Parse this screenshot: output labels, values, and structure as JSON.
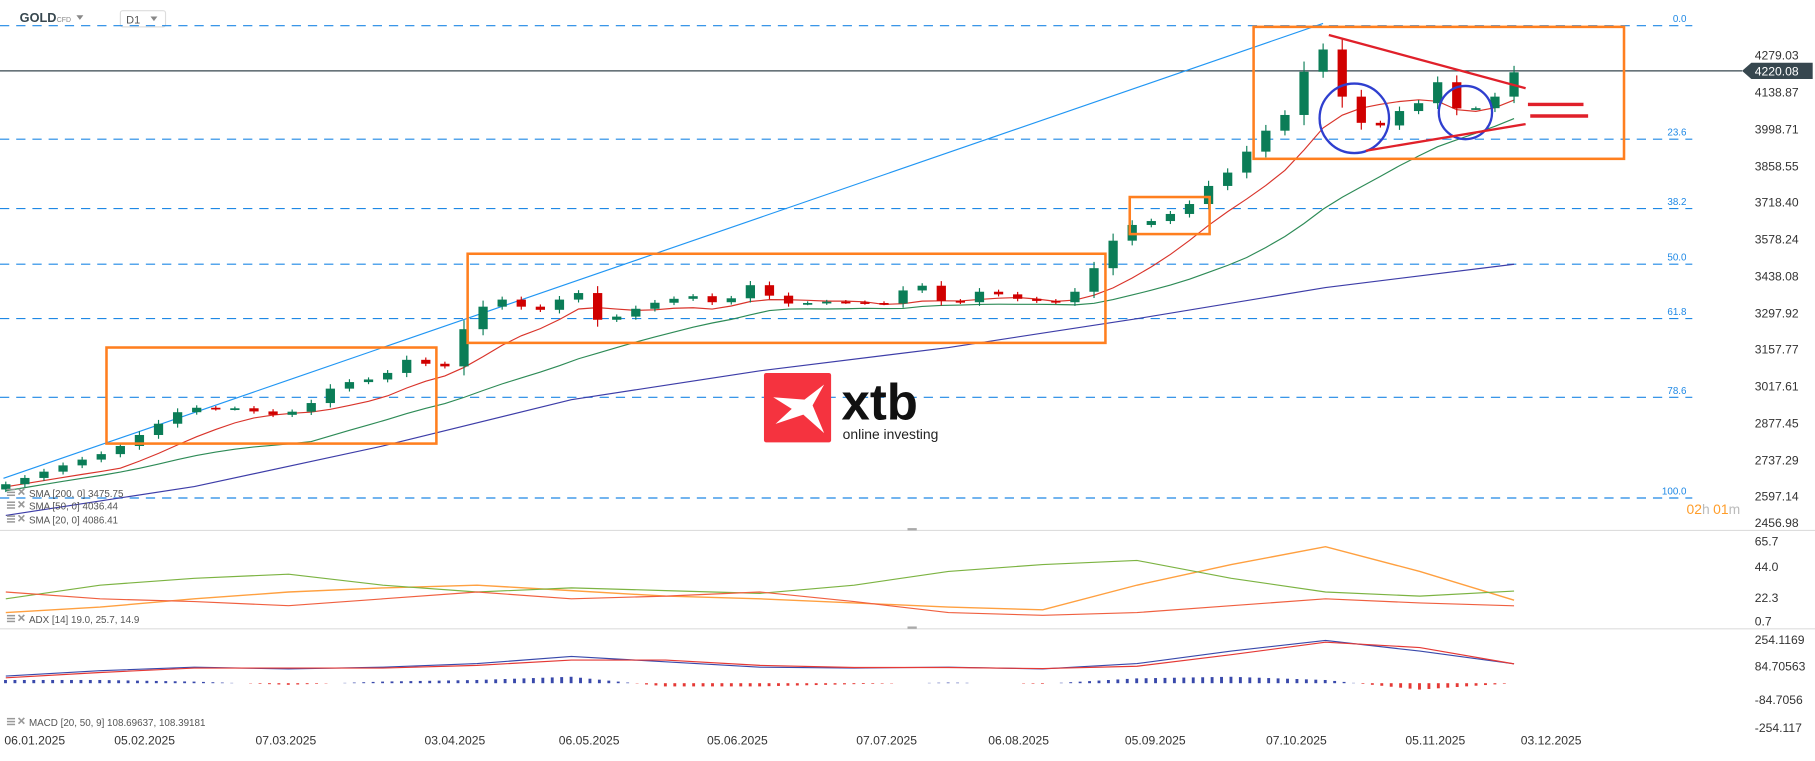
{
  "header": {
    "symbol": "GOLD",
    "instrument_type": "CFD",
    "timeframe": "D1"
  },
  "countdown": {
    "hours": "02",
    "h": "h",
    "minutes": "01",
    "m": "m"
  },
  "logo": {
    "brand": "xtb",
    "tagline": "online investing",
    "color": "#f5333f"
  },
  "current_price": "4220.08",
  "price_axis": [
    "4279.03",
    "4138.87",
    "3998.71",
    "3858.55",
    "3718.40",
    "3578.24",
    "3438.08",
    "3297.92",
    "3157.77",
    "3017.61",
    "2877.45",
    "2737.29",
    "2597.14",
    "2456.98"
  ],
  "fib_levels": [
    "0.0",
    "23.6",
    "38.2",
    "50.0",
    "61.8",
    "78.6",
    "100.0"
  ],
  "legend": {
    "sma200": "SMA [200, 0] 3475.75",
    "sma50": "SMA [50, 0] 4036.44",
    "sma20": "SMA [20, 0] 4086.41",
    "adx": "ADX [14] 19.0,  25.7,  14.9",
    "macd": "MACD [20, 50, 9] 108.69637,   108.39181"
  },
  "adx_axis": [
    "65.7",
    "44.0",
    "22.3",
    "0.7"
  ],
  "macd_axis": [
    "254.1169",
    "84.70563",
    "-84.7056",
    "-254.117"
  ],
  "dates": [
    "06.01.2025",
    "05.02.2025",
    "07.03.2025",
    "03.04.2025",
    "06.05.2025",
    "05.06.2025",
    "07.07.2025",
    "06.08.2025",
    "05.09.2025",
    "07.10.2025",
    "05.11.2025",
    "03.12.2025"
  ],
  "colors": {
    "up": "#0b7d57",
    "down": "#d00000",
    "sma20": "#d9342b",
    "sma50": "#2e8b57",
    "sma200": "#3d3da8",
    "fib": "#1e88e5",
    "annotation": "#ff7f1f",
    "adx": "#ffa040",
    "plus_di": "#7cb342",
    "minus_di": "#f06040",
    "macd": "#3949ab",
    "signal": "#e53935"
  },
  "chart_data": {
    "type": "candlestick",
    "symbol": "GOLD",
    "timeframe": "D1",
    "x_range": [
      "06.01.2025",
      "03.12.2025"
    ],
    "y_range": [
      2456.98,
      4279.03
    ],
    "closes": [
      2640,
      2664,
      2688,
      2712,
      2734,
      2755,
      2786,
      2828,
      2871,
      2915,
      2932,
      2928,
      2930,
      2918,
      2905,
      2917,
      2950,
      3005,
      3030,
      3040,
      3065,
      3115,
      3100,
      3090,
      3232,
      3318,
      3345,
      3318,
      3306,
      3345,
      3370,
      3268,
      3280,
      3310,
      3333,
      3348,
      3358,
      3335,
      3350,
      3400,
      3360,
      3330,
      3332,
      3337,
      3335,
      3332,
      3330,
      3380,
      3398,
      3340,
      3335,
      3375,
      3365,
      3348,
      3340,
      3335,
      3375,
      3465,
      3570,
      3630,
      3645,
      3672,
      3710,
      3779,
      3830,
      3910,
      3990,
      4050,
      4215,
      4300,
      4120,
      4020,
      4010,
      4065,
      4095,
      4175,
      4075,
      4076,
      4120,
      4213
    ],
    "sma200": [
      2521,
      2631,
      2786,
      2963,
      3073,
      3162,
      3272,
      3391,
      3480
    ],
    "adx": {
      "range": [
        0.7,
        65.7
      ],
      "adx": [
        10,
        14,
        20,
        25,
        28,
        30,
        26,
        22,
        20,
        17,
        14,
        12,
        30,
        45,
        58,
        40,
        19
      ],
      "plus_di": [
        20,
        30,
        35,
        38,
        30,
        25,
        28,
        26,
        24,
        30,
        40,
        45,
        48,
        35,
        25,
        22,
        25.7
      ],
      "minus_di": [
        25,
        20,
        18,
        15,
        20,
        25,
        20,
        22,
        25,
        18,
        10,
        8,
        10,
        15,
        20,
        17,
        14.9
      ]
    },
    "macd": {
      "range": [
        -254.117,
        254.1169
      ],
      "macd": [
        40,
        70,
        90,
        80,
        90,
        110,
        150,
        120,
        90,
        85,
        90,
        80,
        110,
        180,
        240,
        180,
        108.7
      ],
      "signal": [
        30,
        60,
        85,
        85,
        85,
        100,
        130,
        130,
        100,
        88,
        88,
        82,
        95,
        160,
        230,
        200,
        108.4
      ]
    }
  }
}
